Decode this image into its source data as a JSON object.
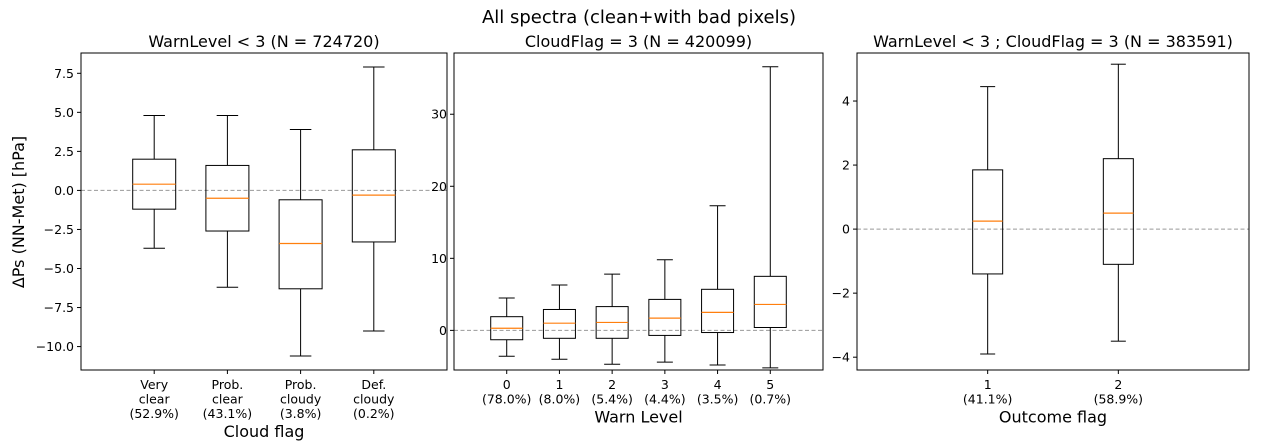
{
  "figure": {
    "suptitle": "All spectra (clean+with bad pixels)",
    "ylabel": "ΔPs (NN-Met) [hPa]"
  },
  "chart_data": [
    {
      "type": "box",
      "title": "WarnLevel < 3 (N = 724720)",
      "xlabel": "Cloud flag",
      "ylabel": "ΔPs (NN-Met) [hPa]",
      "ylim": [
        -11.5,
        8.8
      ],
      "yticks": [
        -10.0,
        -7.5,
        -5.0,
        -2.5,
        0.0,
        2.5,
        5.0,
        7.5
      ],
      "ytick_labels": [
        "−10.0",
        "−7.5",
        "−5.0",
        "−2.5",
        "0.0",
        "2.5",
        "5.0",
        "7.5"
      ],
      "zero_line": true,
      "categories": [
        [
          "Very",
          "clear",
          "(52.9%)"
        ],
        [
          "Prob.",
          "clear",
          "(43.1%)"
        ],
        [
          "Prob.",
          "cloudy",
          "(3.8%)"
        ],
        [
          "Def.",
          "cloudy",
          "(0.2%)"
        ]
      ],
      "boxes": [
        {
          "whislo": -3.7,
          "q1": -1.2,
          "med": 0.4,
          "q3": 2.0,
          "whishi": 4.8
        },
        {
          "whislo": -6.2,
          "q1": -2.6,
          "med": -0.5,
          "q3": 1.6,
          "whishi": 4.8
        },
        {
          "whislo": -10.6,
          "q1": -6.3,
          "med": -3.4,
          "q3": -0.6,
          "whishi": 3.9
        },
        {
          "whislo": -9.0,
          "q1": -3.3,
          "med": -0.3,
          "q3": 2.6,
          "whishi": 7.9
        }
      ]
    },
    {
      "type": "box",
      "title": "CloudFlag = 3 (N = 420099)",
      "xlabel": "Warn Level",
      "ylim": [
        -5.5,
        38.5
      ],
      "yticks": [
        0,
        10,
        20,
        30
      ],
      "ytick_labels": [
        "0",
        "10",
        "20",
        "30"
      ],
      "zero_line": true,
      "categories": [
        [
          "0",
          "(78.0%)"
        ],
        [
          "1",
          "(8.0%)"
        ],
        [
          "2",
          "(5.4%)"
        ],
        [
          "3",
          "(4.4%)"
        ],
        [
          "4",
          "(3.5%)"
        ],
        [
          "5",
          "(0.7%)"
        ]
      ],
      "boxes": [
        {
          "whislo": -3.6,
          "q1": -1.3,
          "med": 0.3,
          "q3": 1.9,
          "whishi": 4.5
        },
        {
          "whislo": -4.0,
          "q1": -1.1,
          "med": 1.0,
          "q3": 2.9,
          "whishi": 6.3
        },
        {
          "whislo": -4.7,
          "q1": -1.1,
          "med": 1.1,
          "q3": 3.3,
          "whishi": 7.8
        },
        {
          "whislo": -4.4,
          "q1": -0.7,
          "med": 1.7,
          "q3": 4.3,
          "whishi": 9.8
        },
        {
          "whislo": -4.8,
          "q1": -0.3,
          "med": 2.5,
          "q3": 5.7,
          "whishi": 17.3
        },
        {
          "whislo": -5.2,
          "q1": 0.4,
          "med": 3.6,
          "q3": 7.5,
          "whishi": 36.6
        }
      ]
    },
    {
      "type": "box",
      "title": "WarnLevel < 3 ; CloudFlag = 3 (N = 383591)",
      "xlabel": "Outcome flag",
      "ylim": [
        -4.4,
        5.5
      ],
      "yticks": [
        -4,
        -2,
        0,
        2,
        4
      ],
      "ytick_labels": [
        "−4",
        "−2",
        "0",
        "2",
        "4"
      ],
      "zero_line": true,
      "categories": [
        [
          "1",
          "(41.1%)"
        ],
        [
          "2",
          "(58.9%)"
        ]
      ],
      "boxes": [
        {
          "whislo": -3.9,
          "q1": -1.4,
          "med": 0.25,
          "q3": 1.85,
          "whishi": 4.45
        },
        {
          "whislo": -3.5,
          "q1": -1.1,
          "med": 0.5,
          "q3": 2.2,
          "whishi": 5.15
        }
      ]
    }
  ]
}
